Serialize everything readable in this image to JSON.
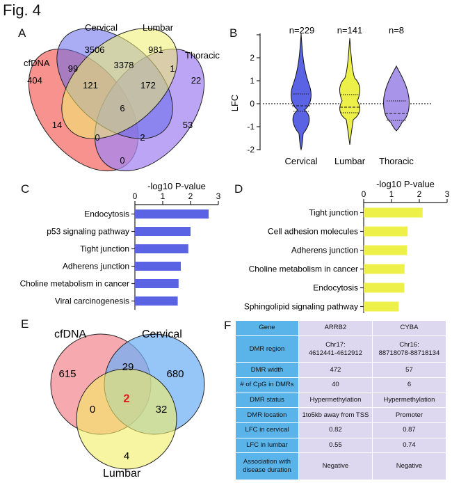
{
  "figure_title": "Fig. 4",
  "panels": {
    "A": {
      "label": "A",
      "sets": [
        "cfDNA",
        "Cervical",
        "Lumbar",
        "Thoracic"
      ],
      "regions": [
        "3506",
        "981",
        "404",
        "22",
        "3378",
        "99",
        "1",
        "121",
        "172",
        "6",
        "14",
        "53",
        "0",
        "2",
        "0"
      ]
    },
    "B": {
      "label": "B",
      "ylabel": "LFC",
      "yticks": [
        "2",
        "1",
        "0",
        "-1",
        "-2"
      ],
      "groups": [
        {
          "name": "Cervical",
          "n": "n=229",
          "color": "#5a63e3"
        },
        {
          "name": "Lumbar",
          "n": "n=141",
          "color": "#f1f04a"
        },
        {
          "name": "Thoracic",
          "n": "n=8",
          "color": "#a894e8"
        }
      ]
    },
    "C": {
      "label": "C"
    },
    "D": {
      "label": "D"
    },
    "E": {
      "label": "E",
      "sets": [
        "cfDNA",
        "Cervical",
        "Lumbar"
      ],
      "regions": [
        "615",
        "680",
        "4",
        "29",
        "0",
        "32",
        "2"
      ]
    },
    "F": {
      "label": "F",
      "table": {
        "header": [
          "Gene",
          "ARRB2",
          "CYBA"
        ],
        "rows": [
          [
            "DMR region",
            "Chr17:\n4612441-4612912",
            "Chr16:\n88718078-88718134"
          ],
          [
            "DMR width",
            "472",
            "57"
          ],
          [
            "# of CpG in DMRs",
            "40",
            "6"
          ],
          [
            "DMR status",
            "Hypermethylation",
            "Hypermethylation"
          ],
          [
            "DMR location",
            "1to5kb away from TSS",
            "Promoter"
          ],
          [
            "LFC in cervical",
            "0.82",
            "0.87"
          ],
          [
            "LFC in lumbar",
            "0.55",
            "0.74"
          ],
          [
            "Association with\ndisease duration",
            "Negative",
            "Negative"
          ]
        ]
      }
    }
  },
  "chart_data": [
    {
      "type": "bar",
      "panel": "C",
      "title": "-log10 P-value",
      "orientation": "horizontal",
      "xticks": [
        "0",
        "1",
        "2",
        "3"
      ],
      "xlim": [
        0,
        3
      ],
      "color": "#5a63e3",
      "categories": [
        "Endocytosis",
        "p53 signaling pathway",
        "Tight junction",
        "Adherens junction",
        "Choline metabolism in cancer",
        "Viral carcinogenesis"
      ],
      "values": [
        2.65,
        2.0,
        1.92,
        1.65,
        1.57,
        1.54
      ]
    },
    {
      "type": "bar",
      "panel": "D",
      "title": "-log10 P-value",
      "orientation": "horizontal",
      "xticks": [
        "0",
        "1",
        "2",
        "3"
      ],
      "xlim": [
        0,
        3
      ],
      "color": "#eef04a",
      "categories": [
        "Tight junction",
        "Cell adhesion molecules",
        "Adherens junction",
        "Choline metabolism in cancer",
        "Endocytosis",
        "Sphingolipid signaling pathway"
      ],
      "values": [
        2.12,
        1.58,
        1.55,
        1.47,
        1.46,
        1.26
      ]
    }
  ]
}
